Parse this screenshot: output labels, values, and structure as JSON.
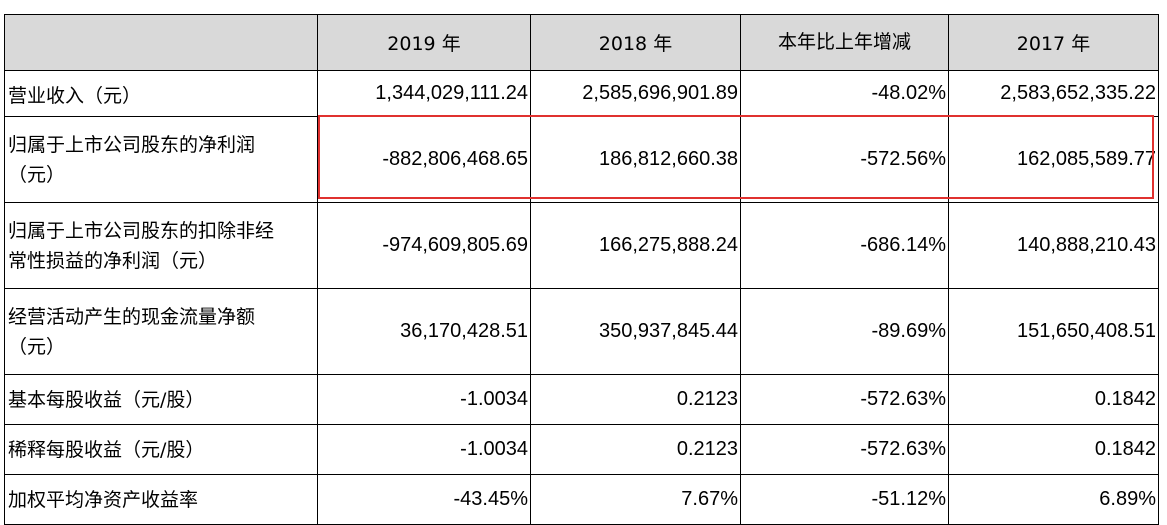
{
  "table": {
    "header": [
      "",
      "2019 年",
      "2018 年",
      "本年比上年增减",
      "2017 年"
    ],
    "rows": [
      {
        "label_lines": [
          "营业收入（元）"
        ],
        "values": [
          "1,344,029,111.24",
          "2,585,696,901.89",
          "-48.02%",
          "2,583,652,335.22"
        ]
      },
      {
        "label_lines": [
          "归属于上市公司股东的净利润",
          "（元）"
        ],
        "values": [
          "-882,806,468.65",
          "186,812,660.38",
          "-572.56%",
          "162,085,589.77"
        ]
      },
      {
        "label_lines": [
          "归属于上市公司股东的扣除非经",
          "常性损益的净利润（元）"
        ],
        "values": [
          "-974,609,805.69",
          "166,275,888.24",
          "-686.14%",
          "140,888,210.43"
        ]
      },
      {
        "label_lines": [
          "经营活动产生的现金流量净额",
          "（元）"
        ],
        "values": [
          "36,170,428.51",
          "350,937,845.44",
          "-89.69%",
          "151,650,408.51"
        ]
      },
      {
        "label_lines": [
          "基本每股收益（元/股）"
        ],
        "values": [
          "-1.0034",
          "0.2123",
          "-572.63%",
          "0.1842"
        ]
      },
      {
        "label_lines": [
          "稀释每股收益（元/股）"
        ],
        "values": [
          "-1.0034",
          "0.2123",
          "-572.63%",
          "0.1842"
        ]
      },
      {
        "label_lines": [
          "加权平均净资产收益率"
        ],
        "values": [
          "-43.45%",
          "7.67%",
          "-51.12%",
          "6.89%"
        ]
      }
    ]
  },
  "colors": {
    "header_bg": "#d9d9d9",
    "highlight_border": "#e0312f",
    "grid": "#000000"
  }
}
